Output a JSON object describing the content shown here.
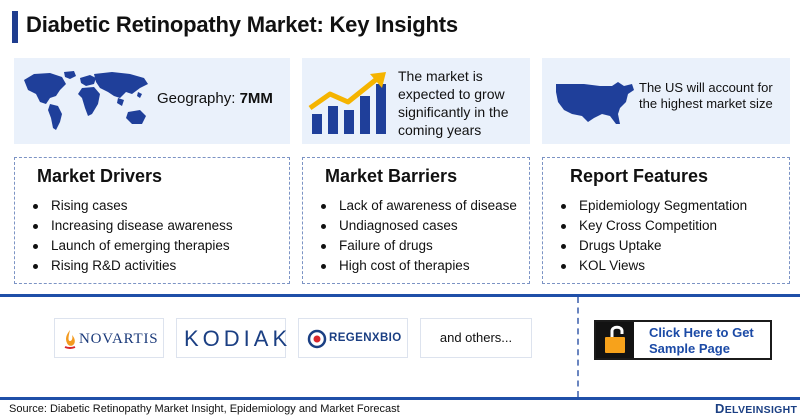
{
  "title": "Diabetic Retinopathy Market: Key Insights",
  "geography": {
    "label": "Geography: ",
    "value": "7MM",
    "icon": "world-map-icon"
  },
  "growth": {
    "text": "The market is expected to grow significantly in the coming years",
    "icon": "growth-chart-icon"
  },
  "us": {
    "text": "The US will account for the highest market size",
    "icon": "us-map-icon"
  },
  "drivers": {
    "heading": "Market Drivers",
    "items": [
      "Rising cases",
      "Increasing disease awareness",
      "Launch of emerging therapies",
      "Rising R&D activities"
    ]
  },
  "barriers": {
    "heading": "Market Barriers",
    "items": [
      "Lack of awareness of disease",
      "Undiagnosed cases",
      "Failure of drugs",
      "High cost of therapies"
    ]
  },
  "features": {
    "heading": "Report Features",
    "items": [
      "Epidemiology Segmentation",
      "Key Cross Competition",
      "Drugs Uptake",
      "KOL Views"
    ]
  },
  "companies": {
    "novartis": "NOVARTIS",
    "kodiak": "KODIAK",
    "regenxbio": "REGENXBIO",
    "others": "and others..."
  },
  "cta": {
    "label": "Click Here to Get Sample Page",
    "icon": "unlocked-padlock-icon"
  },
  "footer": {
    "source": "Source: Diabetic Retinopathy Market Insight, Epidemiology and Market Forecast",
    "brand_initial": "D",
    "brand_rest": "ELVEINSIGHT"
  },
  "colors": {
    "accent": "#1f4fa8",
    "card_bg": "#eaf1fb",
    "growth_arrow": "#f5b400",
    "padlock": "#f7a21b"
  }
}
